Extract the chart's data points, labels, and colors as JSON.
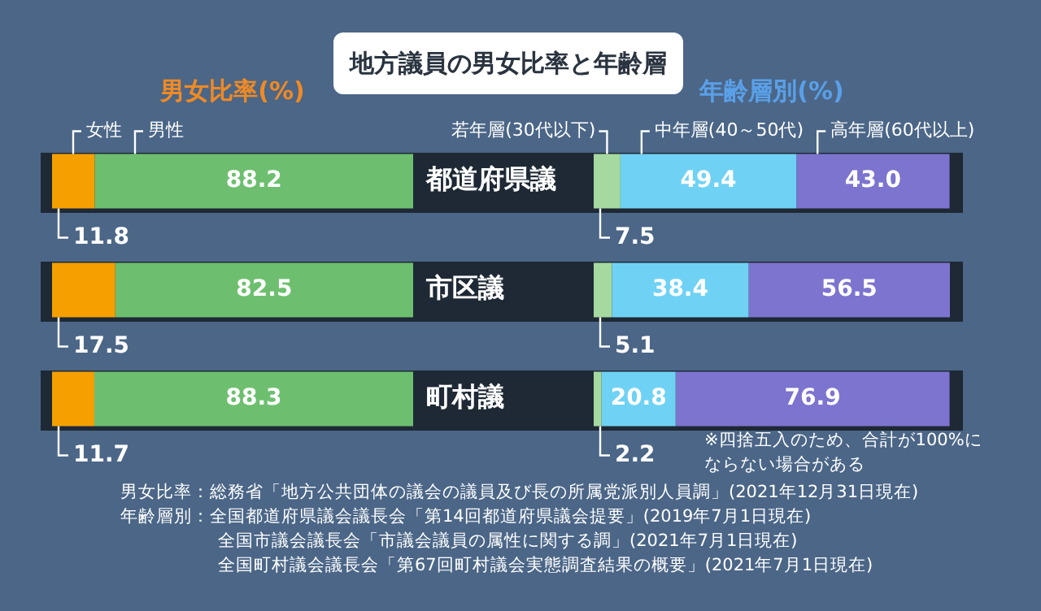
{
  "chart_data": [
    {
      "type": "bar",
      "title": "男女比率(%)",
      "orientation": "horizontal",
      "stacked": true,
      "xlim": [
        0,
        100
      ],
      "tick_labels": "y",
      "categories": [
        "都道府県議",
        "市区議",
        "町村議"
      ],
      "series": [
        {
          "name": "女性",
          "color": "#f5a000",
          "values": [
            11.8,
            17.5,
            11.7
          ],
          "value_labels": [
            "11.8",
            "17.5",
            "11.7"
          ]
        },
        {
          "name": "男性",
          "color": "#6dbf6f",
          "values": [
            88.2,
            82.5,
            88.3
          ],
          "value_labels": [
            "88.2",
            "82.5",
            "88.3"
          ]
        }
      ],
      "annotations": [
        "地方議員の男女比率と年齢層",
        "男女比率：総務省「地方公共団体の議会の議員及び長の所属党派別人員調」(2021年12月31日現在)",
        "年齢層別：全国都道府県議会議長会「第14回都道府県議会提要」(2019年7月1日現在)",
        "全国市議会議長会「市議会議員の属性に関する調」(2021年7月1日現在)",
        "全国町村議会議長会「第67回町村議会実態調査結果の概要」(2021年7月1日現在)"
      ]
    },
    {
      "type": "bar",
      "title": "年齢層別(%)",
      "orientation": "horizontal",
      "stacked": true,
      "xlim": [
        0,
        100
      ],
      "tick_labels": false,
      "categories": [
        null,
        null,
        null
      ],
      "series": [
        {
          "name": "若年層(30代以下)",
          "color": "#a6d9a0",
          "values": [
            7.5,
            5.1,
            2.2
          ],
          "value_labels": [
            "7.5",
            "5.1",
            "2.2"
          ]
        },
        {
          "name": "中年層(40～50代)",
          "color": "#6fd2f5",
          "values": [
            49.4,
            38.4,
            20.8
          ],
          "value_labels": [
            "49.4",
            "38.4",
            "20.8"
          ]
        },
        {
          "name": "高年層(60代以上)",
          "color": "#7c74cf",
          "values": [
            43.0,
            56.5,
            76.9
          ],
          "value_labels": [
            "43.0",
            "56.5",
            "76.9"
          ]
        }
      ],
      "annotations": [
        "※四捨五入のため、合計が100%にならない場合がある"
      ]
    }
  ]
}
